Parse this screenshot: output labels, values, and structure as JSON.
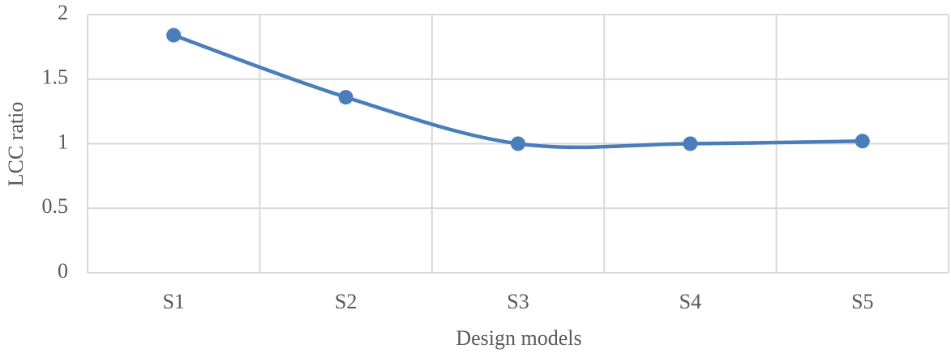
{
  "chart_data": {
    "type": "line",
    "x_label": "Design models",
    "y_label": "LCC ratio",
    "categories": [
      "S1",
      "S2",
      "S3",
      "S4",
      "S5"
    ],
    "series": [
      {
        "name": "LCC ratio",
        "color": "#4a7ebb",
        "values": [
          1.84,
          1.36,
          1.0,
          1.0,
          1.02
        ]
      }
    ],
    "ylim": [
      0,
      2
    ],
    "yticks": [
      0,
      0.5,
      1,
      1.5,
      2
    ],
    "grid": true,
    "smooth": true
  }
}
